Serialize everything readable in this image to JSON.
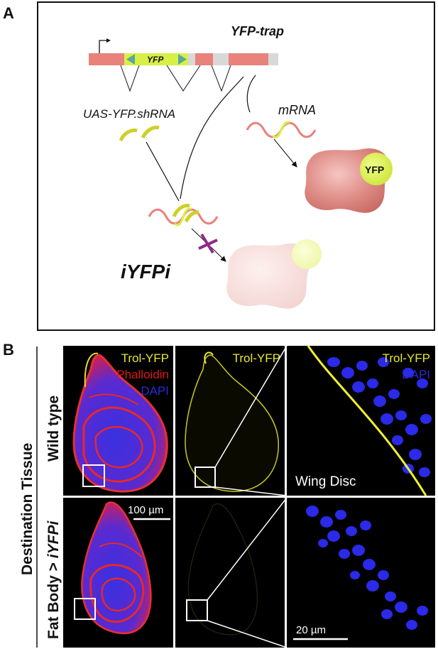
{
  "panel_a": {
    "letter": "A",
    "construct_title": "YFP-trap",
    "exon_label": "YFP",
    "shrna_label": "UAS-YFP.shRNA",
    "mrna_label": "mRNA",
    "protein_label": "YFP",
    "result_label": "iYFPi"
  },
  "panel_b": {
    "letter": "B",
    "side_label": "Destination Tissue",
    "row1_label": "Wild type",
    "row2_label_prefix": "Fat Body > ",
    "row2_label_italic": "iYFPi",
    "img1_lines": [
      "Trol-YFP",
      "Phalloidin",
      "DAPI"
    ],
    "img2_line": "Trol-YFP",
    "img3_lines": [
      "Trol-YFP",
      "DAPI"
    ],
    "img3_caption": "Wing Disc",
    "scale_100": "100 µm",
    "scale_20": "20 µm"
  },
  "colors": {
    "exon": "#e8827a",
    "yfp": "#d8f046",
    "phalloidin": "#e01818",
    "dapi": "#2a2ad8",
    "trol_yfp": "#e8e830",
    "block_x": "#8e2a8a"
  }
}
